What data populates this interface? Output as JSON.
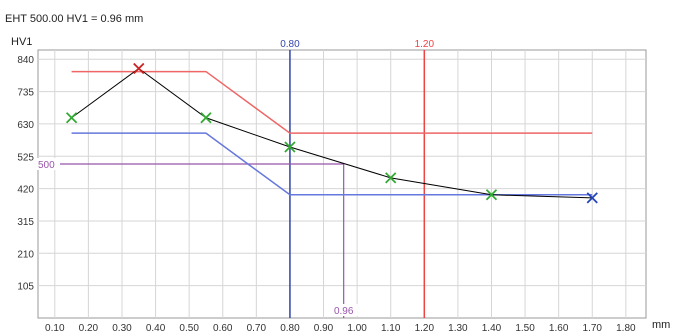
{
  "chart_data": {
    "type": "line",
    "title": "EHT 500.00 HV1 = 0.96 mm",
    "ylabel": "HV1",
    "xlabel": "mm",
    "xlim": [
      0.05,
      1.86
    ],
    "ylim": [
      0,
      870
    ],
    "x_ticks": [
      "0.10",
      "0.20",
      "0.30",
      "0.40",
      "0.50",
      "0.60",
      "0.70",
      "0.80",
      "0.90",
      "1.00",
      "1.10",
      "1.20",
      "1.30",
      "1.40",
      "1.50",
      "1.60",
      "1.70",
      "1.80"
    ],
    "y_ticks": [
      "105",
      "210",
      "315",
      "420",
      "525",
      "630",
      "735",
      "840"
    ],
    "grid": true,
    "series": [
      {
        "role": "measurement",
        "color": "#000000",
        "markers": "x",
        "x": [
          0.15,
          0.35,
          0.55,
          0.8,
          1.1,
          1.4,
          1.7
        ],
        "y": [
          650,
          810,
          650,
          555,
          455,
          400,
          390
        ],
        "marker_colors": [
          "#33aa33",
          "#cc2222",
          "#33aa33",
          "#33aa33",
          "#33aa33",
          "#33aa33",
          "#2244bb"
        ]
      },
      {
        "role": "upper-limit",
        "color": "#ee6666",
        "x": [
          0.15,
          0.55,
          0.8,
          1.7
        ],
        "y": [
          800,
          800,
          600,
          600
        ]
      },
      {
        "role": "lower-limit",
        "color": "#6677dd",
        "x": [
          0.15,
          0.55,
          0.8,
          1.7
        ],
        "y": [
          600,
          600,
          400,
          400
        ]
      }
    ],
    "reference_lines": [
      {
        "orientation": "vertical",
        "x": 0.8,
        "label": "0.80",
        "color": "#3344aa"
      },
      {
        "orientation": "vertical",
        "x": 1.2,
        "label": "1.20",
        "color": "#ee4444"
      }
    ],
    "threshold": {
      "y": 500,
      "y_label": "500",
      "x": 0.96,
      "x_label": "0.96",
      "color": "#9955aa"
    }
  }
}
